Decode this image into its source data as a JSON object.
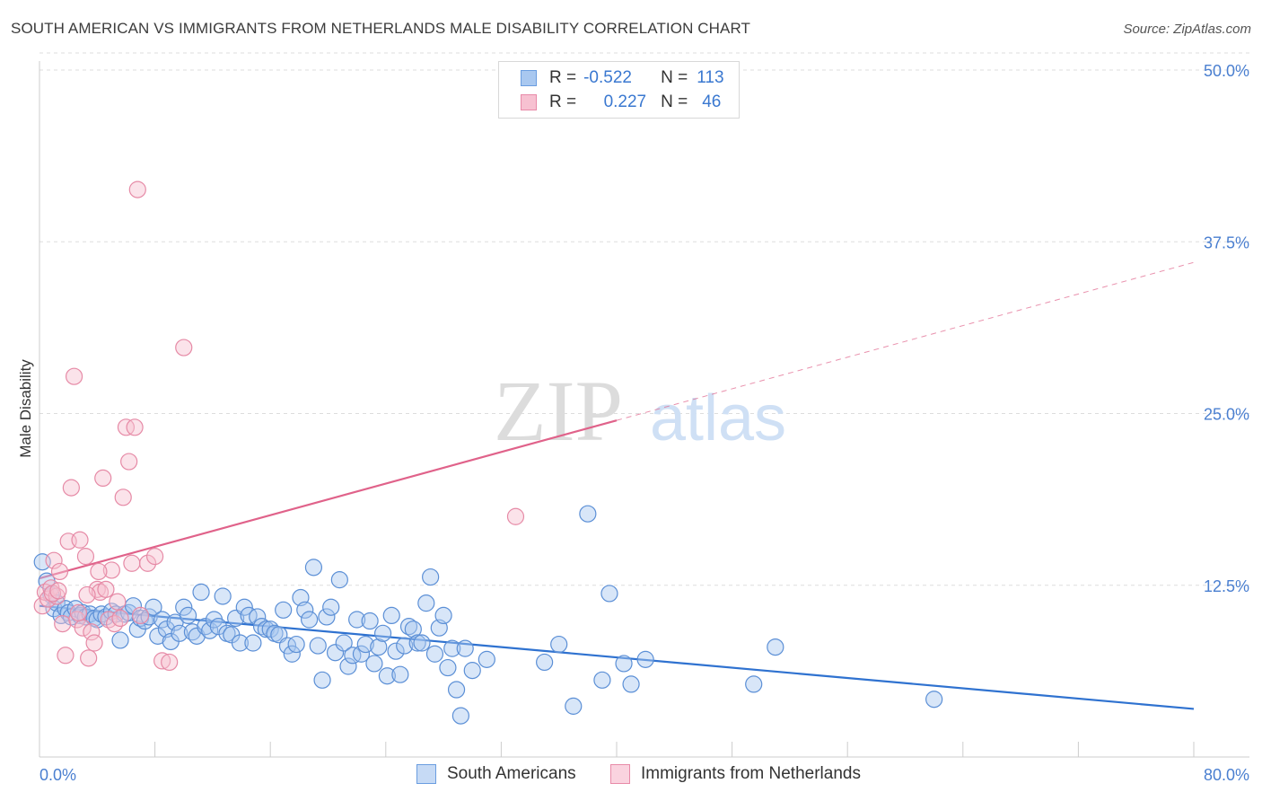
{
  "header": {
    "title": "SOUTH AMERICAN VS IMMIGRANTS FROM NETHERLANDS MALE DISABILITY CORRELATION CHART",
    "source": "Source: ZipAtlas.com"
  },
  "watermark": {
    "left": "ZIP",
    "right": "atlas"
  },
  "legend": {
    "rows": [
      {
        "r_label": "R =",
        "r_value": "-0.522",
        "n_label": "N =",
        "n_value": "113",
        "color": "#a9c8f0",
        "border": "#6a9de0"
      },
      {
        "r_label": "R =",
        "r_value": "0.227",
        "n_label": "N =",
        "n_value": "46",
        "color": "#f7c1d1",
        "border": "#e88aa8"
      }
    ]
  },
  "bottom_legend": {
    "series1": "South Americans",
    "series2": "Immigrants from Netherlands"
  },
  "colors": {
    "blue_fill": "#a9c8f0",
    "blue_stroke": "#5b8fd6",
    "blue_line": "#2f72d0",
    "pink_fill": "#f7c1d1",
    "pink_stroke": "#e68aa6",
    "pink_line": "#e0628a",
    "axis_text": "#4a7fd0"
  },
  "chart_data": {
    "type": "scatter",
    "ylabel": "Male Disability",
    "xlabel": "",
    "xlim": [
      0,
      80
    ],
    "ylim": [
      0,
      50
    ],
    "x_tick_labels": [
      {
        "value": 0,
        "label": "0.0%"
      },
      {
        "value": 80,
        "label": "80.0%"
      }
    ],
    "y_tick_labels": [
      {
        "value": 12.5,
        "label": "12.5%"
      },
      {
        "value": 25.0,
        "label": "25.0%"
      },
      {
        "value": 37.5,
        "label": "37.5%"
      },
      {
        "value": 50.0,
        "label": "50.0%"
      }
    ],
    "grid": "horizontal dashed",
    "legend_position": "top-center",
    "series": [
      {
        "name": "South Americans",
        "trend": {
          "x": [
            0,
            80
          ],
          "y": [
            11.0,
            3.5
          ]
        },
        "points": [
          [
            0.2,
            14.2
          ],
          [
            0.5,
            12.8
          ],
          [
            0.8,
            11.8
          ],
          [
            1.0,
            10.8
          ],
          [
            1.2,
            11.2
          ],
          [
            1.5,
            10.3
          ],
          [
            1.8,
            10.8
          ],
          [
            2.0,
            10.5
          ],
          [
            2.2,
            10.2
          ],
          [
            2.5,
            10.8
          ],
          [
            2.8,
            10.3
          ],
          [
            3.0,
            10.5
          ],
          [
            3.2,
            10.2
          ],
          [
            3.5,
            10.4
          ],
          [
            3.8,
            10.1
          ],
          [
            4.0,
            10.0
          ],
          [
            4.3,
            10.4
          ],
          [
            4.6,
            10.2
          ],
          [
            5.0,
            10.6
          ],
          [
            5.3,
            10.4
          ],
          [
            5.6,
            8.5
          ],
          [
            5.9,
            10.4
          ],
          [
            6.2,
            10.5
          ],
          [
            6.5,
            11.0
          ],
          [
            6.8,
            9.3
          ],
          [
            7.0,
            10.1
          ],
          [
            7.3,
            9.9
          ],
          [
            7.6,
            10.2
          ],
          [
            7.9,
            10.9
          ],
          [
            8.2,
            8.8
          ],
          [
            8.5,
            10.0
          ],
          [
            8.8,
            9.3
          ],
          [
            9.1,
            8.4
          ],
          [
            9.4,
            9.8
          ],
          [
            9.7,
            9.0
          ],
          [
            10.0,
            10.9
          ],
          [
            10.3,
            10.3
          ],
          [
            10.6,
            9.1
          ],
          [
            10.9,
            8.8
          ],
          [
            11.2,
            12.0
          ],
          [
            11.5,
            9.5
          ],
          [
            11.8,
            9.2
          ],
          [
            12.1,
            10.0
          ],
          [
            12.4,
            9.5
          ],
          [
            12.7,
            11.7
          ],
          [
            13.0,
            9.0
          ],
          [
            13.3,
            8.9
          ],
          [
            13.6,
            10.1
          ],
          [
            13.9,
            8.3
          ],
          [
            14.2,
            10.9
          ],
          [
            14.5,
            10.3
          ],
          [
            14.8,
            8.3
          ],
          [
            15.1,
            10.2
          ],
          [
            15.4,
            9.5
          ],
          [
            15.7,
            9.3
          ],
          [
            16.0,
            9.3
          ],
          [
            16.3,
            9.0
          ],
          [
            16.6,
            8.9
          ],
          [
            16.9,
            10.7
          ],
          [
            17.2,
            8.1
          ],
          [
            17.5,
            7.5
          ],
          [
            17.8,
            8.2
          ],
          [
            18.1,
            11.6
          ],
          [
            18.4,
            10.7
          ],
          [
            18.7,
            10.0
          ],
          [
            19.0,
            13.8
          ],
          [
            19.3,
            8.1
          ],
          [
            19.6,
            5.6
          ],
          [
            19.9,
            10.2
          ],
          [
            20.2,
            10.9
          ],
          [
            20.5,
            7.6
          ],
          [
            20.8,
            12.9
          ],
          [
            21.1,
            8.3
          ],
          [
            21.4,
            6.6
          ],
          [
            21.7,
            7.4
          ],
          [
            22.0,
            10.0
          ],
          [
            22.3,
            7.5
          ],
          [
            22.6,
            8.2
          ],
          [
            22.9,
            9.9
          ],
          [
            23.2,
            6.8
          ],
          [
            23.5,
            8.0
          ],
          [
            23.8,
            9.0
          ],
          [
            24.1,
            5.9
          ],
          [
            24.4,
            10.3
          ],
          [
            24.7,
            7.7
          ],
          [
            25.0,
            6.0
          ],
          [
            25.3,
            8.1
          ],
          [
            25.6,
            9.5
          ],
          [
            25.9,
            9.3
          ],
          [
            26.2,
            8.3
          ],
          [
            26.5,
            8.3
          ],
          [
            26.8,
            11.2
          ],
          [
            27.1,
            13.1
          ],
          [
            27.4,
            7.5
          ],
          [
            27.7,
            9.4
          ],
          [
            28.0,
            10.3
          ],
          [
            28.3,
            6.5
          ],
          [
            28.6,
            7.9
          ],
          [
            28.9,
            4.9
          ],
          [
            29.2,
            3.0
          ],
          [
            29.5,
            7.9
          ],
          [
            30.0,
            6.3
          ],
          [
            31.0,
            7.1
          ],
          [
            35.0,
            6.9
          ],
          [
            36.0,
            8.2
          ],
          [
            37.0,
            3.7
          ],
          [
            38.0,
            17.7
          ],
          [
            39.0,
            5.6
          ],
          [
            39.5,
            11.9
          ],
          [
            40.5,
            6.8
          ],
          [
            41.0,
            5.3
          ],
          [
            42.0,
            7.1
          ],
          [
            49.5,
            5.3
          ],
          [
            51.0,
            8.0
          ],
          [
            62.0,
            4.2
          ]
        ]
      },
      {
        "name": "Immigrants from Netherlands",
        "trend": {
          "x": [
            0,
            40
          ],
          "y": [
            13.0,
            24.5
          ]
        },
        "trend_extension": {
          "x": [
            40,
            80
          ],
          "y": [
            24.5,
            36.0
          ]
        },
        "points": [
          [
            0.2,
            11.0
          ],
          [
            0.4,
            12.0
          ],
          [
            0.6,
            11.5
          ],
          [
            0.8,
            12.3
          ],
          [
            1.0,
            14.3
          ],
          [
            1.2,
            11.7
          ],
          [
            1.4,
            13.5
          ],
          [
            1.6,
            9.7
          ],
          [
            1.8,
            7.4
          ],
          [
            2.0,
            15.7
          ],
          [
            2.2,
            19.6
          ],
          [
            2.4,
            27.7
          ],
          [
            2.6,
            10.0
          ],
          [
            2.8,
            15.8
          ],
          [
            3.0,
            9.4
          ],
          [
            3.2,
            14.6
          ],
          [
            3.4,
            7.2
          ],
          [
            3.6,
            9.1
          ],
          [
            3.8,
            8.3
          ],
          [
            4.0,
            12.2
          ],
          [
            4.2,
            12.0
          ],
          [
            4.4,
            20.3
          ],
          [
            4.6,
            12.2
          ],
          [
            4.8,
            10.0
          ],
          [
            5.0,
            13.6
          ],
          [
            5.2,
            9.7
          ],
          [
            5.4,
            11.3
          ],
          [
            5.6,
            10.1
          ],
          [
            5.8,
            18.9
          ],
          [
            6.0,
            24.0
          ],
          [
            6.2,
            21.5
          ],
          [
            6.4,
            14.1
          ],
          [
            6.6,
            24.0
          ],
          [
            6.8,
            41.3
          ],
          [
            7.0,
            10.3
          ],
          [
            7.5,
            14.1
          ],
          [
            8.0,
            14.6
          ],
          [
            8.5,
            7.0
          ],
          [
            9.0,
            6.9
          ],
          [
            10.0,
            29.8
          ],
          [
            0.9,
            11.9
          ],
          [
            1.3,
            12.1
          ],
          [
            2.7,
            10.5
          ],
          [
            3.3,
            11.8
          ],
          [
            4.1,
            13.5
          ],
          [
            33.0,
            17.5
          ]
        ]
      }
    ]
  }
}
